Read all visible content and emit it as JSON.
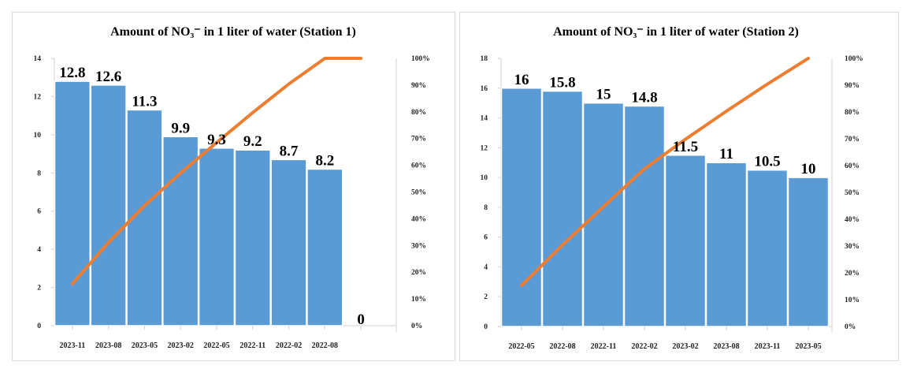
{
  "chart_data": [
    {
      "type": "bar",
      "combo": "bar + cumulative percentage line (Pareto)",
      "title": "Amount of NO₃⁻ in 1 liter of water (Station 1)",
      "categories": [
        "2023-11",
        "2023-08",
        "2023-05",
        "2023-02",
        "2022-05",
        "2022-11",
        "2022-02",
        "2022-08",
        ""
      ],
      "series": [
        {
          "name": "NO3- amount",
          "type": "bar",
          "values": [
            12.8,
            12.6,
            11.3,
            9.9,
            9.3,
            9.2,
            8.7,
            8.2,
            0
          ],
          "data_labels": [
            "12.8",
            "12.6",
            "11.3",
            "9.9",
            "9.3",
            "9.2",
            "8.7",
            "8.2",
            "0"
          ],
          "color": "#5b9bd5"
        },
        {
          "name": "Cumulative %",
          "type": "line",
          "axis": "secondary",
          "values": [
            0.157,
            0.311,
            0.449,
            0.571,
            0.685,
            0.797,
            0.904,
            1.0,
            1.0
          ],
          "color": "#ed7d31"
        }
      ],
      "ylim": [
        0,
        14
      ],
      "yticks": [
        "0",
        "2",
        "4",
        "6",
        "8",
        "10",
        "12",
        "14"
      ],
      "y2lim": [
        0,
        1
      ],
      "y2ticks": [
        "0%",
        "10%",
        "20%",
        "30%",
        "40%",
        "50%",
        "60%",
        "70%",
        "80%",
        "90%",
        "100%"
      ],
      "xlabel": "",
      "ylabel": "",
      "grid": false,
      "legend": "none"
    },
    {
      "type": "bar",
      "combo": "bar + cumulative percentage line (Pareto)",
      "title": "Amount of NO₃⁻ in 1 liter of water (Station 2)",
      "categories": [
        "2022-05",
        "2022-08",
        "2022-11",
        "2022-02",
        "2023-02",
        "2023-08",
        "2023-11",
        "2023-05"
      ],
      "series": [
        {
          "name": "NO3- amount",
          "type": "bar",
          "values": [
            16,
            15.8,
            15,
            14.8,
            11.5,
            11,
            10.5,
            10
          ],
          "data_labels": [
            "16",
            "15.8",
            "15",
            "14.8",
            "11.5",
            "11",
            "10.5",
            "10"
          ],
          "color": "#5b9bd5"
        },
        {
          "name": "Cumulative %",
          "type": "line",
          "axis": "secondary",
          "values": [
            0.153,
            0.304,
            0.447,
            0.588,
            0.698,
            0.803,
            0.904,
            1.0
          ],
          "color": "#ed7d31"
        }
      ],
      "ylim": [
        0,
        18
      ],
      "yticks": [
        "0",
        "2",
        "4",
        "6",
        "8",
        "10",
        "12",
        "14",
        "16",
        "18"
      ],
      "y2lim": [
        0,
        1
      ],
      "y2ticks": [
        "0%",
        "10%",
        "20%",
        "30%",
        "40%",
        "50%",
        "60%",
        "70%",
        "80%",
        "90%",
        "100%"
      ],
      "xlabel": "",
      "ylabel": "",
      "grid": false,
      "legend": "none"
    }
  ]
}
